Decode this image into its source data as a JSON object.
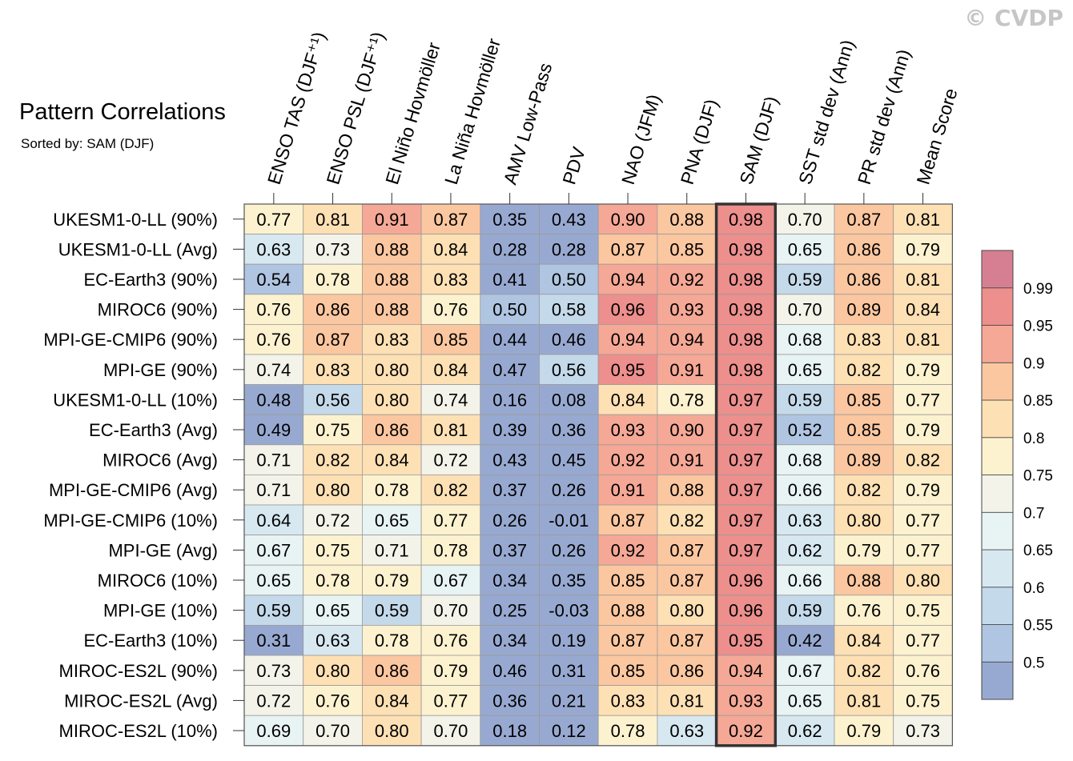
{
  "watermark": "© CVDP",
  "title": "Pattern Correlations",
  "subtitle": "Sorted by: SAM (DJF)",
  "chart_data": {
    "type": "heatmap",
    "columns": [
      "ENSO TAS (DJF⁺¹)",
      "ENSO PSL (DJF⁺¹)",
      "El Niño Hovmöller",
      "La Niña Hovmöller",
      "AMV Low-Pass",
      "PDV",
      "NAO (JFM)",
      "PNA (DJF)",
      "SAM (DJF)",
      "SST std dev (Ann)",
      "PR std dev (Ann)",
      "Mean Score"
    ],
    "highlight_column": "SAM (DJF)",
    "rows": [
      "UKESM1-0-LL (90%)",
      "UKESM1-0-LL (Avg)",
      "EC-Earth3 (90%)",
      "MIROC6 (90%)",
      "MPI-GE-CMIP6 (90%)",
      "MPI-GE (90%)",
      "UKESM1-0-LL (10%)",
      "EC-Earth3 (Avg)",
      "MIROC6 (Avg)",
      "MPI-GE-CMIP6 (Avg)",
      "MPI-GE-CMIP6 (10%)",
      "MPI-GE (Avg)",
      "MIROC6 (10%)",
      "MPI-GE (10%)",
      "EC-Earth3 (10%)",
      "MIROC-ES2L (90%)",
      "MIROC-ES2L (Avg)",
      "MIROC-ES2L (10%)"
    ],
    "values": [
      [
        "0.77",
        "0.81",
        "0.91",
        "0.87",
        "0.35",
        "0.43",
        "0.90",
        "0.88",
        "0.98",
        "0.70",
        "0.87",
        "0.81"
      ],
      [
        "0.63",
        "0.73",
        "0.88",
        "0.84",
        "0.28",
        "0.28",
        "0.87",
        "0.85",
        "0.98",
        "0.65",
        "0.86",
        "0.79"
      ],
      [
        "0.54",
        "0.78",
        "0.88",
        "0.83",
        "0.41",
        "0.50",
        "0.94",
        "0.92",
        "0.98",
        "0.59",
        "0.86",
        "0.81"
      ],
      [
        "0.76",
        "0.86",
        "0.88",
        "0.76",
        "0.50",
        "0.58",
        "0.96",
        "0.93",
        "0.98",
        "0.70",
        "0.89",
        "0.84"
      ],
      [
        "0.76",
        "0.87",
        "0.83",
        "0.85",
        "0.44",
        "0.46",
        "0.94",
        "0.94",
        "0.98",
        "0.68",
        "0.83",
        "0.81"
      ],
      [
        "0.74",
        "0.83",
        "0.80",
        "0.84",
        "0.47",
        "0.56",
        "0.95",
        "0.91",
        "0.98",
        "0.65",
        "0.82",
        "0.79"
      ],
      [
        "0.48",
        "0.56",
        "0.80",
        "0.74",
        "0.16",
        "0.08",
        "0.84",
        "0.78",
        "0.97",
        "0.59",
        "0.85",
        "0.77"
      ],
      [
        "0.49",
        "0.75",
        "0.86",
        "0.81",
        "0.39",
        "0.36",
        "0.93",
        "0.90",
        "0.97",
        "0.52",
        "0.85",
        "0.79"
      ],
      [
        "0.71",
        "0.82",
        "0.84",
        "0.72",
        "0.43",
        "0.45",
        "0.92",
        "0.91",
        "0.97",
        "0.68",
        "0.89",
        "0.82"
      ],
      [
        "0.71",
        "0.80",
        "0.78",
        "0.82",
        "0.37",
        "0.26",
        "0.91",
        "0.88",
        "0.97",
        "0.66",
        "0.82",
        "0.79"
      ],
      [
        "0.64",
        "0.72",
        "0.65",
        "0.77",
        "0.26",
        "-0.01",
        "0.87",
        "0.82",
        "0.97",
        "0.63",
        "0.80",
        "0.77"
      ],
      [
        "0.67",
        "0.75",
        "0.71",
        "0.78",
        "0.37",
        "0.26",
        "0.92",
        "0.87",
        "0.97",
        "0.62",
        "0.79",
        "0.77"
      ],
      [
        "0.65",
        "0.78",
        "0.79",
        "0.67",
        "0.34",
        "0.35",
        "0.85",
        "0.87",
        "0.96",
        "0.66",
        "0.88",
        "0.80"
      ],
      [
        "0.59",
        "0.65",
        "0.59",
        "0.70",
        "0.25",
        "-0.03",
        "0.88",
        "0.80",
        "0.96",
        "0.59",
        "0.76",
        "0.75"
      ],
      [
        "0.31",
        "0.63",
        "0.78",
        "0.76",
        "0.34",
        "0.19",
        "0.87",
        "0.87",
        "0.95",
        "0.42",
        "0.84",
        "0.77"
      ],
      [
        "0.73",
        "0.80",
        "0.86",
        "0.79",
        "0.46",
        "0.31",
        "0.85",
        "0.86",
        "0.94",
        "0.67",
        "0.82",
        "0.76"
      ],
      [
        "0.72",
        "0.76",
        "0.84",
        "0.77",
        "0.36",
        "0.21",
        "0.83",
        "0.81",
        "0.93",
        "0.65",
        "0.81",
        "0.75"
      ],
      [
        "0.69",
        "0.70",
        "0.80",
        "0.70",
        "0.18",
        "0.12",
        "0.78",
        "0.63",
        "0.92",
        "0.62",
        "0.79",
        "0.73"
      ]
    ],
    "colorbar": {
      "tick_labels": [
        "0.5",
        "0.55",
        "0.6",
        "0.65",
        "0.7",
        "0.75",
        "0.8",
        "0.85",
        "0.9",
        "0.95",
        "0.99"
      ],
      "bin_edges": [
        0.5,
        0.55,
        0.6,
        0.65,
        0.7,
        0.75,
        0.8,
        0.85,
        0.9,
        0.95,
        0.99
      ],
      "colors": [
        "#98a9d1",
        "#afc5e1",
        "#c4d9ea",
        "#d7e8f0",
        "#e8f3f3",
        "#f3f3ea",
        "#fdf2cf",
        "#fde0b4",
        "#fbc7a0",
        "#f5a896",
        "#ec8f8d",
        "#d67f92"
      ]
    }
  }
}
